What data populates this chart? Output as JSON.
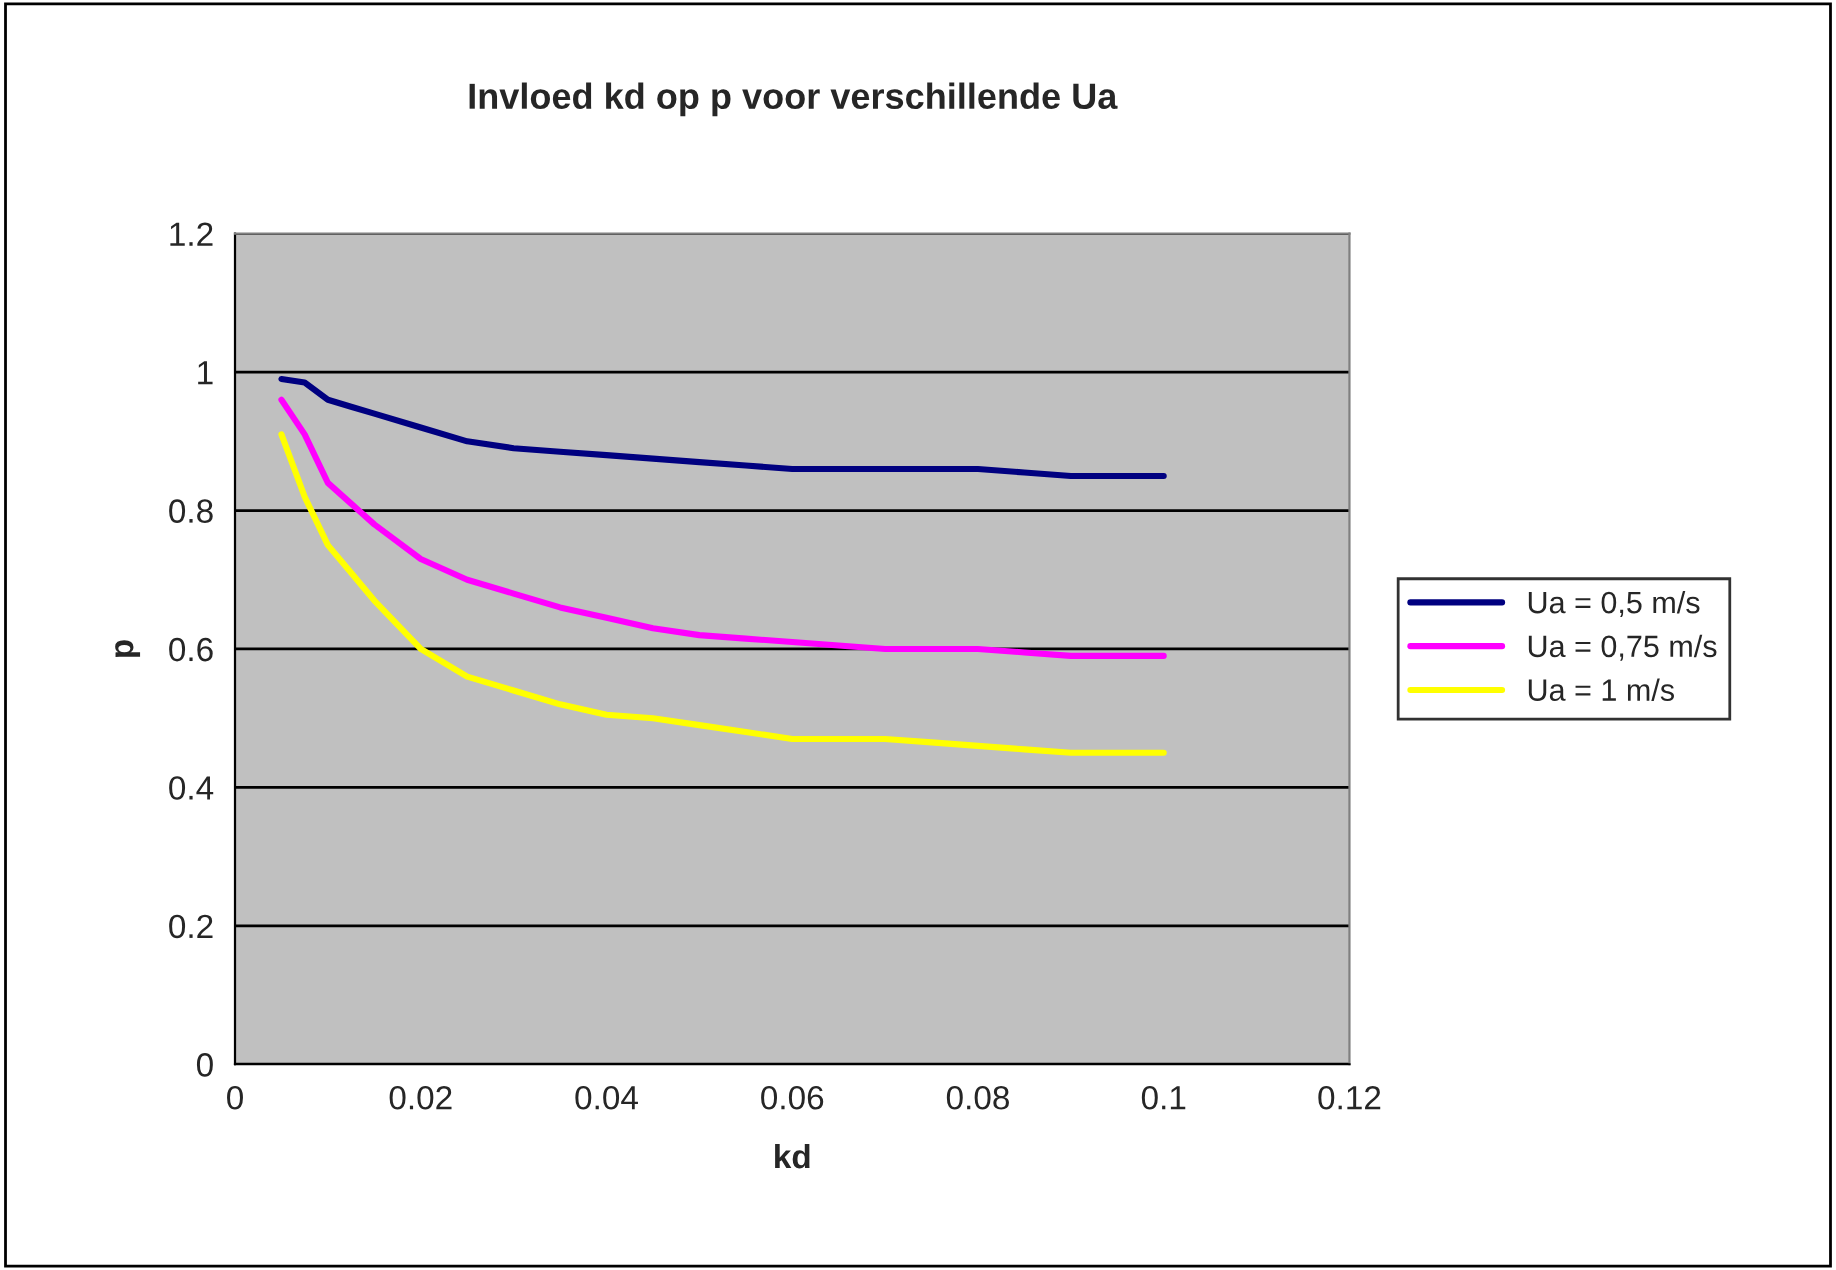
{
  "chart_data": {
    "type": "line",
    "title": "Invloed kd op p voor verschillende Ua",
    "xlabel": "kd",
    "ylabel": "p",
    "x": [
      0.005,
      0.0075,
      0.01,
      0.0125,
      0.015,
      0.02,
      0.025,
      0.03,
      0.035,
      0.04,
      0.045,
      0.05,
      0.055,
      0.06,
      0.065,
      0.07,
      0.075,
      0.08,
      0.085,
      0.09,
      0.1
    ],
    "series": [
      {
        "name": "Ua = 0,5 m/s",
        "color": "#000080",
        "values": [
          0.99,
          0.985,
          0.96,
          0.95,
          0.94,
          0.92,
          0.9,
          0.89,
          0.885,
          0.88,
          0.875,
          0.87,
          0.865,
          0.86,
          0.86,
          0.86,
          0.86,
          0.86,
          0.855,
          0.85,
          0.85
        ]
      },
      {
        "name": "Ua = 0,75 m/s",
        "color": "#ff00ff",
        "values": [
          0.96,
          0.91,
          0.84,
          0.81,
          0.78,
          0.73,
          0.7,
          0.68,
          0.66,
          0.645,
          0.63,
          0.62,
          0.615,
          0.61,
          0.605,
          0.6,
          0.6,
          0.6,
          0.595,
          0.59,
          0.59
        ]
      },
      {
        "name": "Ua = 1 m/s",
        "color": "#ffff00",
        "values": [
          0.91,
          0.82,
          0.75,
          0.71,
          0.67,
          0.6,
          0.56,
          0.54,
          0.52,
          0.505,
          0.5,
          0.49,
          0.48,
          0.47,
          0.47,
          0.47,
          0.465,
          0.46,
          0.455,
          0.45,
          0.45
        ]
      }
    ],
    "xlim": [
      0,
      0.12
    ],
    "xticks": [
      0,
      0.02,
      0.04,
      0.06,
      0.08,
      0.1,
      0.12
    ],
    "ylim": [
      0,
      1.2
    ],
    "yticks": [
      0,
      0.2,
      0.4,
      0.6,
      0.8,
      1,
      1.2
    ],
    "grid": "y",
    "legend": "right",
    "marker": "none",
    "line_style": "solid"
  }
}
